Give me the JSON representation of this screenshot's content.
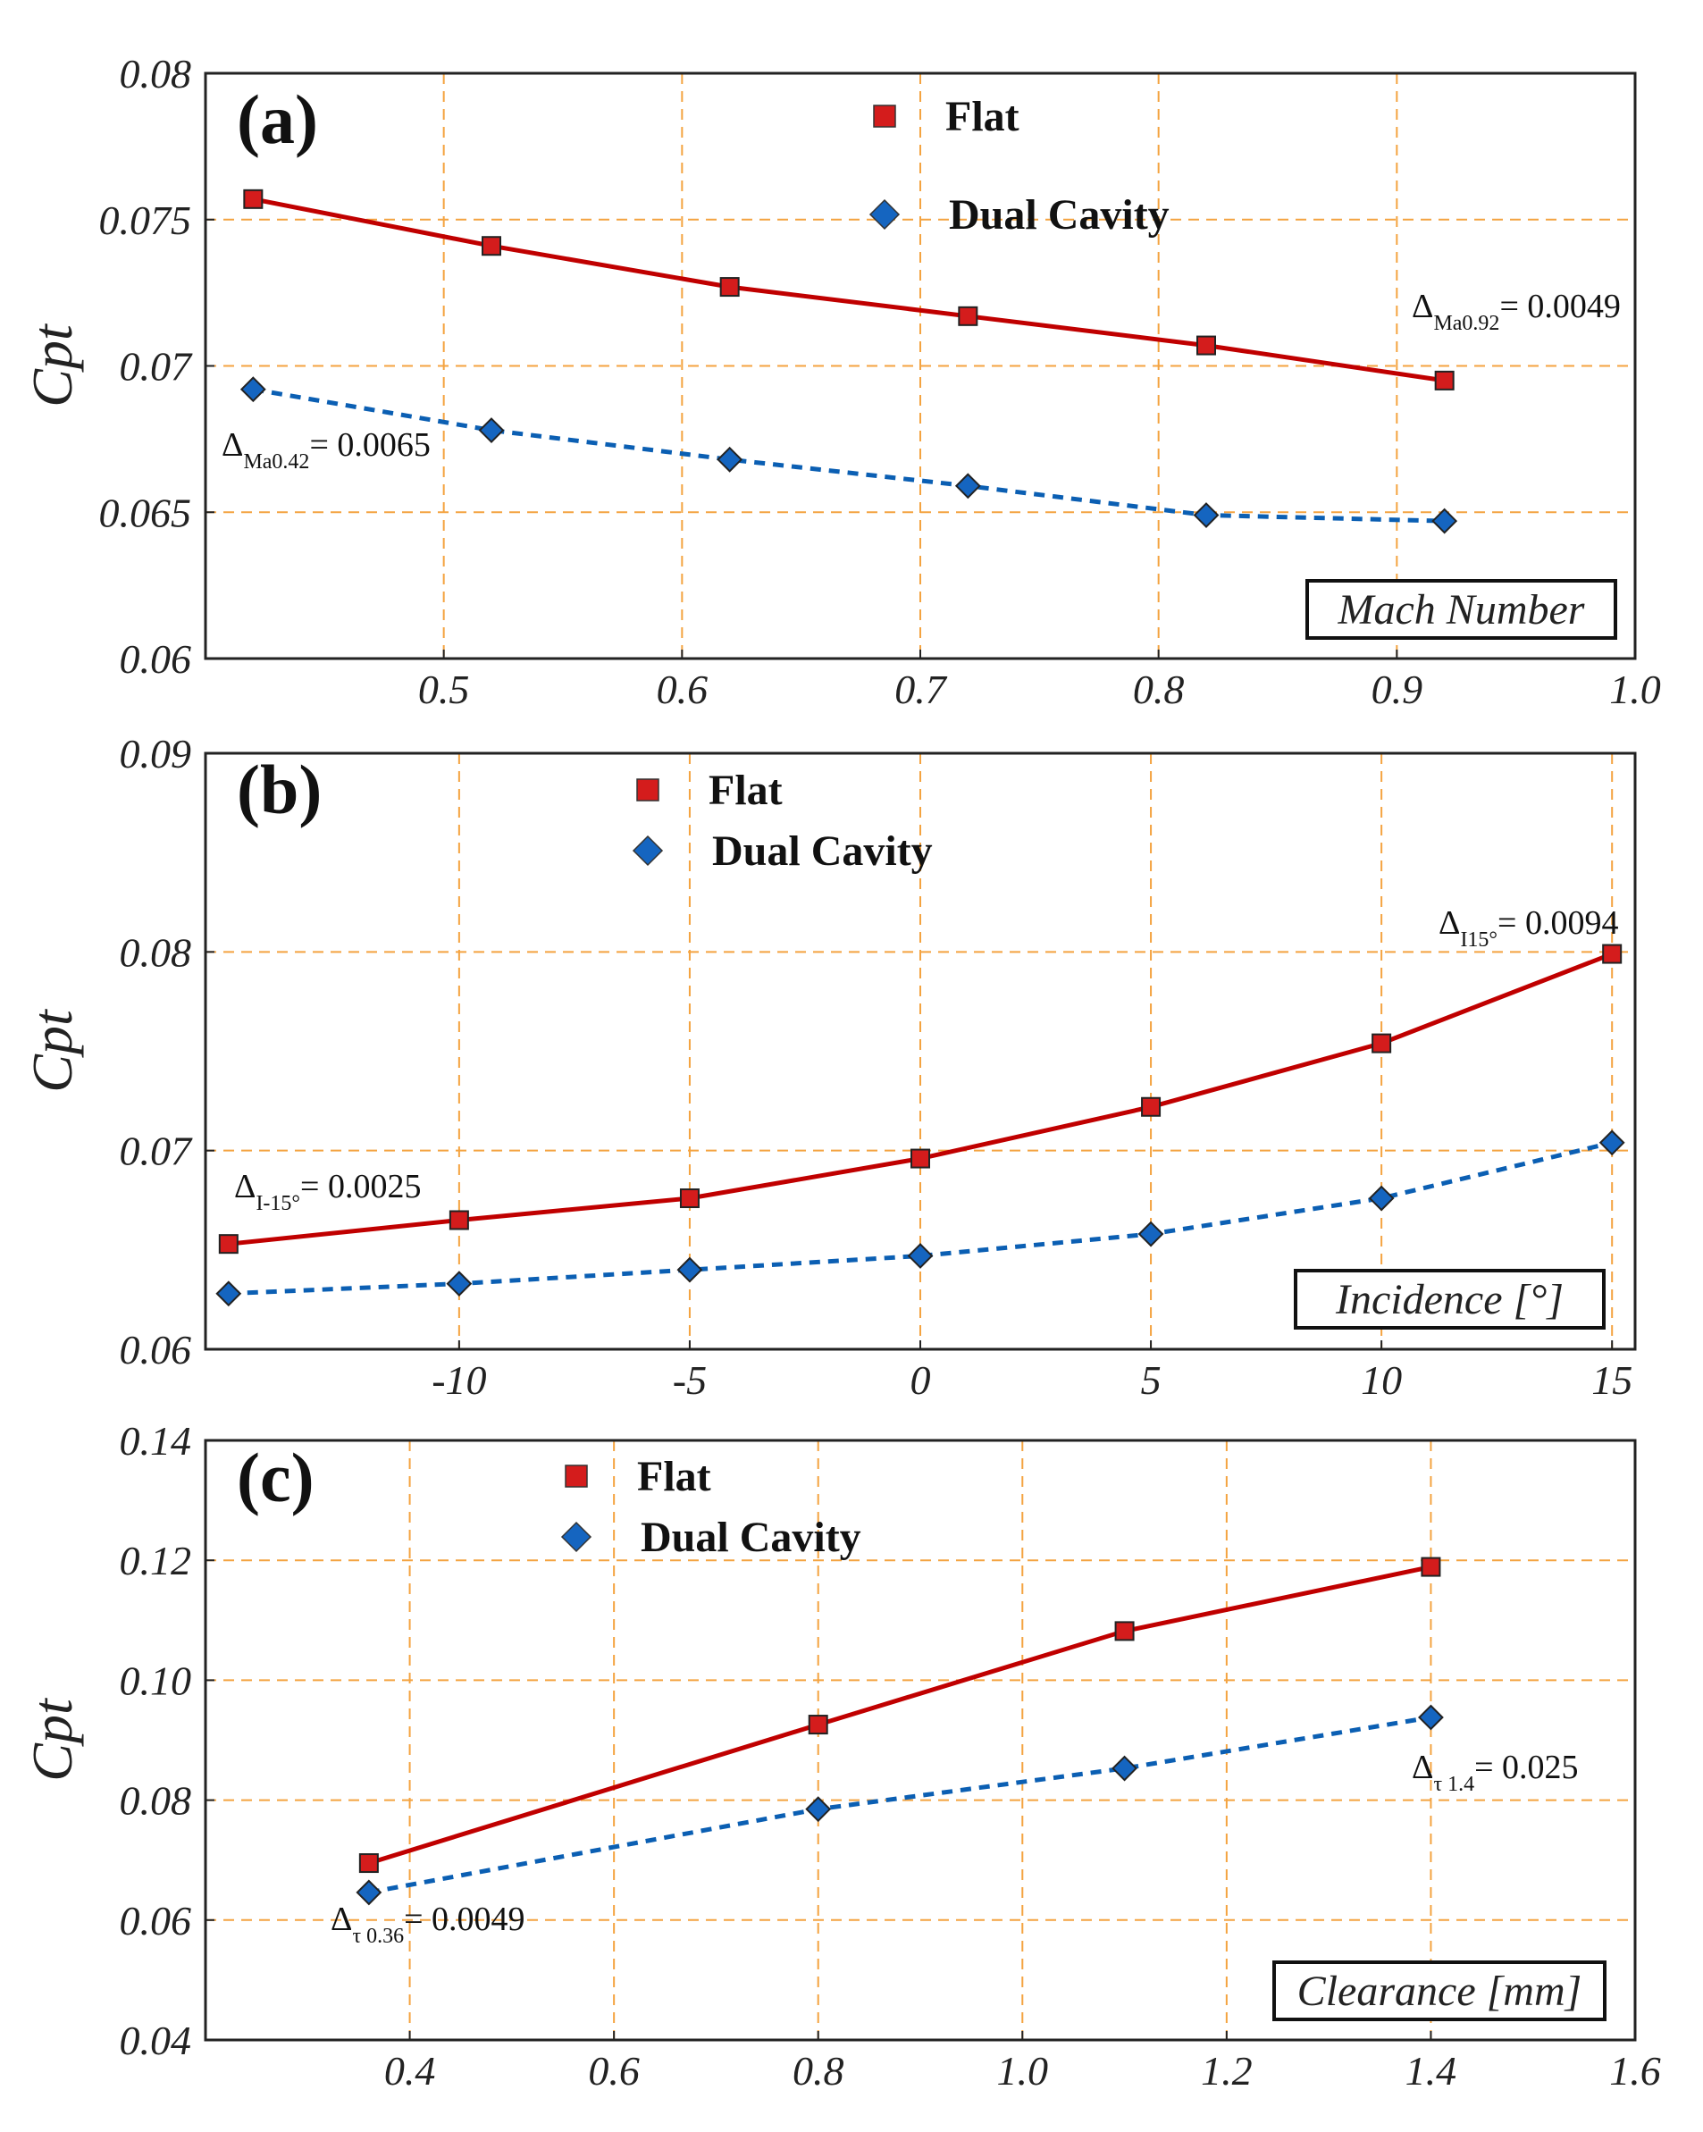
{
  "colors": {
    "flat": "#c00000",
    "flat_marker": "#d41c1c",
    "dual": "#0b5fb3",
    "dual_marker": "#1565c0",
    "grid": "#f4a340",
    "axis": "#222222"
  },
  "chart_data": [
    {
      "type": "line",
      "panel_label": "(a)",
      "xlabel": "Mach Number",
      "ylabel": "Cpt",
      "xlim": [
        0.4,
        1.0
      ],
      "ylim": [
        0.06,
        0.08
      ],
      "xticks": [
        0.5,
        0.6,
        0.7,
        0.8,
        0.9,
        1.0
      ],
      "xtick_labels": [
        "0.5",
        "0.6",
        "0.7",
        "0.8",
        "0.9",
        "1.0"
      ],
      "yticks": [
        0.06,
        0.065,
        0.07,
        0.075,
        0.08
      ],
      "ytick_labels": [
        "0.06",
        "0.065",
        "0.07",
        "0.075",
        "0.08"
      ],
      "grid": true,
      "legend_position": "top-center",
      "series": [
        {
          "name": "Flat",
          "marker": "square",
          "style": "solid",
          "x": [
            0.42,
            0.52,
            0.62,
            0.72,
            0.82,
            0.92
          ],
          "y": [
            0.0757,
            0.0741,
            0.0727,
            0.0717,
            0.0707,
            0.0695
          ]
        },
        {
          "name": "Dual Cavity",
          "marker": "diamond",
          "style": "dashed",
          "x": [
            0.42,
            0.52,
            0.62,
            0.72,
            0.82,
            0.92
          ],
          "y": [
            0.0692,
            0.0678,
            0.0668,
            0.0659,
            0.0649,
            0.0647
          ]
        }
      ],
      "annotations": [
        {
          "symbol": "Δ",
          "sub": "Ma0.42",
          "text": "= 0.0065"
        },
        {
          "symbol": "Δ",
          "sub": "Ma0.92",
          "text": "= 0.0049"
        }
      ]
    },
    {
      "type": "line",
      "panel_label": "(b)",
      "xlabel": "Incidence [°]",
      "ylabel": "Cpt",
      "xlim": [
        -15.5,
        15.5
      ],
      "ylim": [
        0.06,
        0.09
      ],
      "xticks": [
        -10,
        -5,
        0,
        5,
        10,
        15
      ],
      "xtick_labels": [
        "-10",
        "-5",
        "0",
        "5",
        "10",
        "15"
      ],
      "yticks": [
        0.06,
        0.07,
        0.08,
        0.09
      ],
      "ytick_labels": [
        "0.06",
        "0.07",
        "0.08",
        "0.09"
      ],
      "grid": true,
      "legend_position": "top-center",
      "series": [
        {
          "name": "Flat",
          "marker": "square",
          "style": "solid",
          "x": [
            -15,
            -10,
            -5,
            0,
            5,
            10,
            15
          ],
          "y": [
            0.0653,
            0.0665,
            0.0676,
            0.0696,
            0.0722,
            0.0754,
            0.0799
          ]
        },
        {
          "name": "Dual Cavity",
          "marker": "diamond",
          "style": "dashed",
          "x": [
            -15,
            -10,
            -5,
            0,
            5,
            10,
            15
          ],
          "y": [
            0.0628,
            0.0633,
            0.064,
            0.0647,
            0.0658,
            0.0676,
            0.0704
          ]
        }
      ],
      "annotations": [
        {
          "symbol": "Δ",
          "sub": "I-15°",
          "text": "= 0.0025"
        },
        {
          "symbol": "Δ",
          "sub": "I15°",
          "text": "= 0.0094"
        }
      ]
    },
    {
      "type": "line",
      "panel_label": "(c)",
      "xlabel": "Clearance [mm]",
      "ylabel": "Cpt",
      "xlim": [
        0.2,
        1.6
      ],
      "ylim": [
        0.04,
        0.14
      ],
      "xticks": [
        0.4,
        0.6,
        0.8,
        1.0,
        1.2,
        1.4,
        1.6
      ],
      "xtick_labels": [
        "0.4",
        "0.6",
        "0.8",
        "1.0",
        "1.2",
        "1.4",
        "1.6"
      ],
      "yticks": [
        0.04,
        0.06,
        0.08,
        0.1,
        0.12,
        0.14
      ],
      "ytick_labels": [
        "0.04",
        "0.06",
        "0.08",
        "0.10",
        "0.12",
        "0.14"
      ],
      "grid": true,
      "legend_position": "top-center",
      "series": [
        {
          "name": "Flat",
          "marker": "square",
          "style": "solid",
          "x": [
            0.36,
            0.8,
            1.1,
            1.4
          ],
          "y": [
            0.0695,
            0.0926,
            0.1082,
            0.1189
          ]
        },
        {
          "name": "Dual Cavity",
          "marker": "diamond",
          "style": "dashed",
          "x": [
            0.36,
            0.8,
            1.1,
            1.4
          ],
          "y": [
            0.0646,
            0.0785,
            0.0853,
            0.0938
          ]
        }
      ],
      "annotations": [
        {
          "symbol": "Δ",
          "sub": "τ 0.36",
          "text": "= 0.0049"
        },
        {
          "symbol": "Δ",
          "sub": "τ 1.4",
          "text": "= 0.025"
        }
      ]
    }
  ]
}
